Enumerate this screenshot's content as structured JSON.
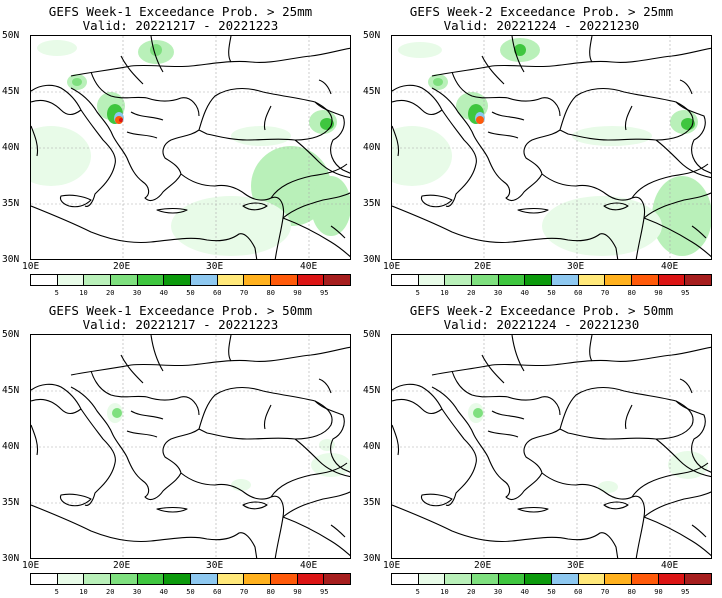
{
  "panels": [
    {
      "title": "GEFS Week-1 Exceedance Prob. > 25mm",
      "valid": "Valid: 20221217 - 20221223"
    },
    {
      "title": "GEFS Week-2 Exceedance Prob. > 25mm",
      "valid": "Valid: 20221224 - 20221230"
    },
    {
      "title": "GEFS Week-1 Exceedance Prob. > 50mm",
      "valid": "Valid: 20221217 - 20221223"
    },
    {
      "title": "GEFS Week-2 Exceedance Prob. > 50mm",
      "valid": "Valid: 20221224 - 20221230"
    }
  ],
  "axes": {
    "lat_labels": [
      "50N",
      "45N",
      "40N",
      "35N",
      "30N"
    ],
    "lon_labels": [
      "10E",
      "20E",
      "30E",
      "40E"
    ]
  },
  "colorbar": {
    "colors": [
      "#ffffff",
      "#e8fbe8",
      "#b9f0b9",
      "#7fe07f",
      "#3fc63f",
      "#0c9a0c",
      "#8ec8f0",
      "#ffe87a",
      "#ffb11e",
      "#ff5a0a",
      "#dc1414",
      "#a61e1e"
    ],
    "labels": [
      "5",
      "10",
      "20",
      "30",
      "40",
      "50",
      "60",
      "70",
      "80",
      "90",
      "95"
    ]
  }
}
